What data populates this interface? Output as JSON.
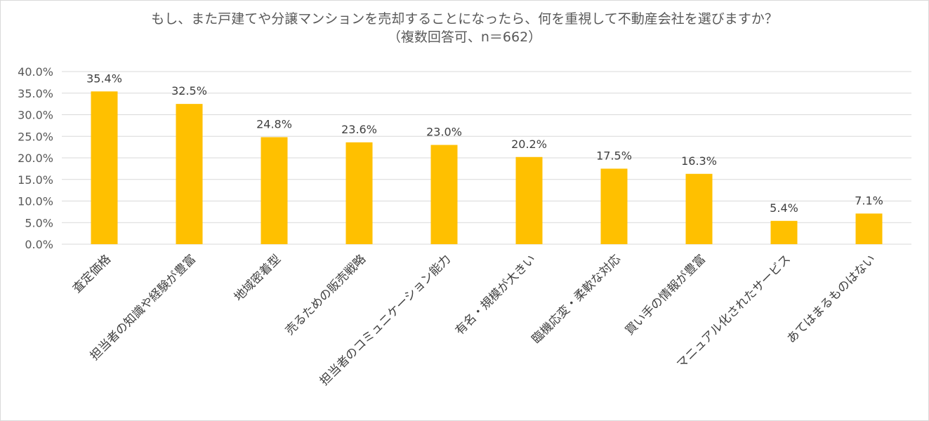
{
  "chart_data": {
    "type": "bar",
    "title": "もし、また戸建てや分譲マンションを売却することになったら、何を重視して不動産会社を選びますか？",
    "subtitle": "（複数回答可、n＝662）",
    "categories": [
      "査定価格",
      "担当者の知識や経験が豊富",
      "地域密着型",
      "売るための販売戦略",
      "担当者のコミュニケーション能力",
      "有名・規模が大きい",
      "臨機応変・柔軟な対応",
      "買い手の情報が豊富",
      "マニュアル化されたサービス",
      "あてはまるものはない"
    ],
    "values": [
      35.4,
      32.5,
      24.8,
      23.6,
      23.0,
      20.2,
      17.5,
      16.3,
      5.4,
      7.1
    ],
    "data_labels": [
      "35.4%",
      "32.5%",
      "24.8%",
      "23.6%",
      "23.0%",
      "20.2%",
      "17.5%",
      "16.3%",
      "5.4%",
      "7.1%"
    ],
    "y_ticks": [
      "0.0%",
      "5.0%",
      "10.0%",
      "15.0%",
      "20.0%",
      "25.0%",
      "30.0%",
      "35.0%",
      "40.0%"
    ],
    "ylim": [
      0,
      40
    ],
    "grid": true,
    "xlabel": "",
    "ylabel": "",
    "bar_color": "#FFC000",
    "grid_color": "#D9D9D9"
  }
}
